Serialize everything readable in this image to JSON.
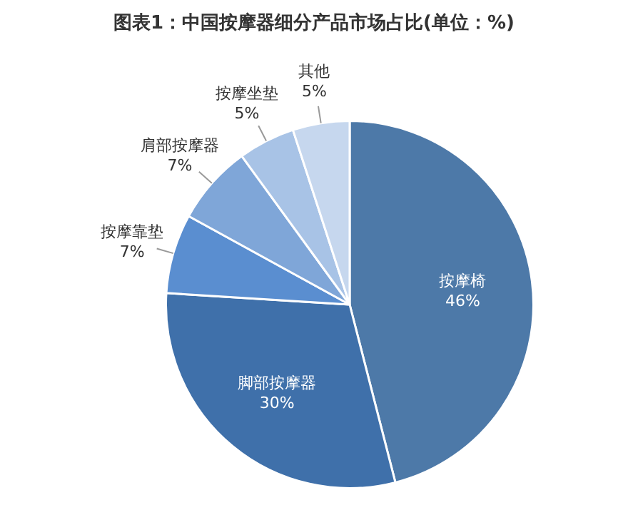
{
  "chart_data": {
    "type": "pie",
    "title": "图表1：中国按摩器细分产品市场占比(单位：%)",
    "categories": [
      "按摩椅",
      "脚部按摩器",
      "按摩靠垫",
      "肩部按摩器",
      "按摩坐垫",
      "其他"
    ],
    "values": [
      46,
      30,
      7,
      7,
      5,
      5
    ],
    "value_labels": [
      "46%",
      "30%",
      "7%",
      "7%",
      "5%",
      "5%"
    ],
    "colors": [
      "#4d79a8",
      "#3f70aa",
      "#5a8ed0",
      "#7fa6d8",
      "#a8c3e6",
      "#c6d7ee"
    ],
    "legend": false
  }
}
